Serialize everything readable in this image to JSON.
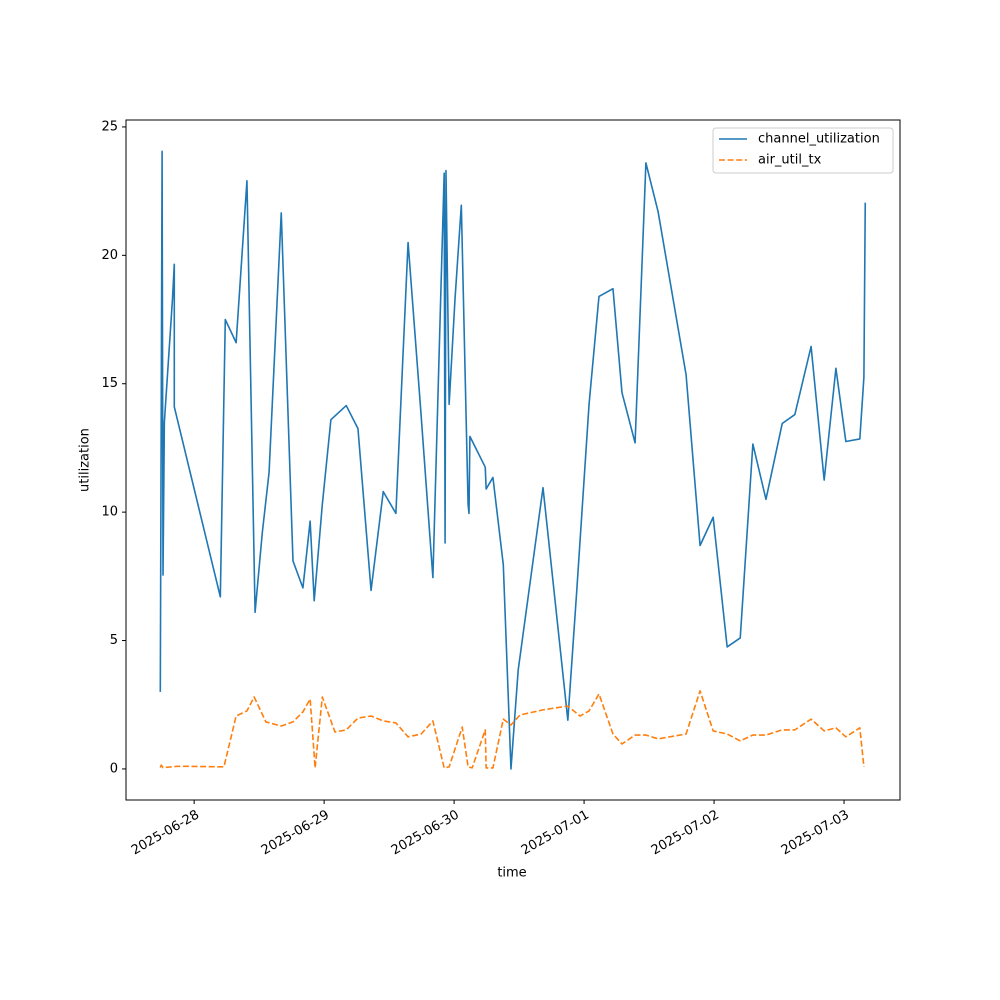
{
  "chart_data": {
    "type": "line",
    "xlabel": "time",
    "ylabel": "utilization",
    "xlim": [
      "2025-06-27 11:25",
      "2025-07-03 10:20"
    ],
    "xticks": [
      "2025-06-28",
      "2025-06-29",
      "2025-06-30",
      "2025-07-01",
      "2025-07-02",
      "2025-07-03"
    ],
    "ylim": [
      -1.21,
      25.27
    ],
    "yticks": [
      0,
      5,
      10,
      15,
      20,
      25
    ],
    "grid": false,
    "legend": "upper right",
    "series": [
      {
        "name": "channel_utilization",
        "color": "#1f77b4",
        "dash": "solid",
        "x": [
          "2025-06-27 17:45",
          "2025-06-27 18:05",
          "2025-06-27 18:15",
          "2025-06-27 18:30",
          "2025-06-27 20:00",
          "2025-06-27 20:20",
          "2025-06-27 20:20",
          "2025-06-28 04:50",
          "2025-06-28 05:45",
          "2025-06-28 07:45",
          "2025-06-28 09:45",
          "2025-06-28 11:15",
          "2025-06-28 12:35",
          "2025-06-28 13:50",
          "2025-06-28 16:05",
          "2025-06-28 18:15",
          "2025-06-28 20:05",
          "2025-06-28 21:25",
          "2025-06-28 22:10",
          "2025-06-28 23:40",
          "2025-06-29 01:15",
          "2025-06-29 04:05",
          "2025-06-29 06:15",
          "2025-06-29 08:40",
          "2025-06-29 10:55",
          "2025-06-29 13:15",
          "2025-06-29 15:30",
          "2025-06-29 17:55",
          "2025-06-29 20:05",
          "2025-06-29 22:10",
          "2025-06-29 22:20",
          "2025-06-29 22:30",
          "2025-06-29 23:05",
          "2025-06-30 00:10",
          "2025-06-30 01:20",
          "2025-06-30 02:35",
          "2025-06-30 02:45",
          "2025-06-30 02:55",
          "2025-06-30 05:45",
          "2025-06-30 05:55",
          "2025-06-30 07:10",
          "2025-06-30 09:05",
          "2025-06-30 10:30",
          "2025-06-30 11:50",
          "2025-06-30 16:25",
          "2025-06-30 21:00",
          "2025-06-30 22:40",
          "2025-07-01 00:55",
          "2025-07-01 02:45",
          "2025-07-01 05:20",
          "2025-07-01 07:00",
          "2025-07-01 09:25",
          "2025-07-01 11:25",
          "2025-07-01 13:40",
          "2025-07-01 18:50",
          "2025-07-01 21:25",
          "2025-07-01 23:50",
          "2025-07-02 02:25",
          "2025-07-02 04:50",
          "2025-07-02 07:10",
          "2025-07-02 09:35",
          "2025-07-02 12:35",
          "2025-07-02 14:55",
          "2025-07-02 17:55",
          "2025-07-02 20:20",
          "2025-07-02 22:30",
          "2025-07-03 00:20",
          "2025-07-03 02:55",
          "2025-07-03 03:40",
          "2025-07-03 03:55"
        ],
        "values": [
          3.0,
          24.05,
          7.55,
          13.5,
          18.3,
          19.65,
          14.1,
          6.7,
          17.5,
          16.6,
          22.9,
          6.1,
          9.2,
          11.55,
          21.65,
          8.1,
          7.05,
          9.65,
          6.55,
          10.3,
          13.6,
          14.15,
          13.25,
          6.95,
          10.8,
          9.95,
          20.5,
          13.75,
          7.45,
          23.2,
          8.8,
          23.3,
          14.2,
          18.3,
          21.95,
          10.3,
          9.95,
          12.95,
          11.75,
          10.9,
          11.35,
          7.95,
          0,
          3.85,
          10.95,
          1.9,
          7.0,
          14.2,
          18.4,
          18.7,
          14.65,
          12.7,
          23.6,
          21.7,
          15.35,
          8.7,
          9.8,
          4.75,
          5.1,
          12.65,
          10.5,
          13.45,
          13.8,
          16.45,
          11.25,
          15.6,
          12.75,
          12.85,
          15.25,
          22.05
        ]
      },
      {
        "name": "air_util_tx",
        "color": "#ff7f0e",
        "dash": "dashed",
        "x": [
          "2025-06-27 17:45",
          "2025-06-27 17:55",
          "2025-06-27 18:15",
          "2025-06-27 20:50",
          "2025-06-27 23:05",
          "2025-06-28 05:30",
          "2025-06-28 07:45",
          "2025-06-28 09:45",
          "2025-06-28 11:05",
          "2025-06-28 13:15",
          "2025-06-28 16:05",
          "2025-06-28 18:15",
          "2025-06-28 20:05",
          "2025-06-28 21:25",
          "2025-06-28 22:20",
          "2025-06-28 23:40",
          "2025-06-29 02:00",
          "2025-06-29 04:05",
          "2025-06-29 06:15",
          "2025-06-29 08:40",
          "2025-06-29 10:55",
          "2025-06-29 13:15",
          "2025-06-29 15:30",
          "2025-06-29 17:55",
          "2025-06-29 20:05",
          "2025-06-29 22:10",
          "2025-06-29 23:05",
          "2025-06-30 01:30",
          "2025-06-30 02:35",
          "2025-06-30 03:20",
          "2025-06-30 05:45",
          "2025-06-30 05:55",
          "2025-06-30 07:10",
          "2025-06-30 09:05",
          "2025-06-30 10:30",
          "2025-06-30 12:10",
          "2025-06-30 16:25",
          "2025-06-30 21:00",
          "2025-06-30 23:15",
          "2025-07-01 00:55",
          "2025-07-01 02:45",
          "2025-07-01 05:20",
          "2025-07-01 07:00",
          "2025-07-01 09:25",
          "2025-07-01 11:25",
          "2025-07-01 13:40",
          "2025-07-01 18:50",
          "2025-07-01 21:25",
          "2025-07-01 23:50",
          "2025-07-02 02:25",
          "2025-07-02 04:50",
          "2025-07-02 07:10",
          "2025-07-02 09:35",
          "2025-07-02 12:35",
          "2025-07-02 14:55",
          "2025-07-02 17:55",
          "2025-07-02 20:20",
          "2025-07-02 22:30",
          "2025-07-03 00:20",
          "2025-07-03 02:55",
          "2025-07-03 03:40"
        ],
        "values": [
          0.05,
          0.15,
          0.05,
          0.1,
          0.1,
          0.08,
          2.06,
          2.26,
          2.8,
          1.83,
          1.67,
          1.83,
          2.22,
          2.72,
          0.04,
          2.8,
          1.44,
          1.52,
          1.98,
          2.06,
          1.87,
          1.79,
          1.25,
          1.36,
          1.87,
          0.04,
          0.08,
          1.63,
          0.08,
          0.04,
          1.52,
          0.04,
          0.04,
          1.94,
          1.71,
          2.1,
          2.3,
          2.45,
          2.06,
          2.26,
          2.92,
          1.36,
          0.97,
          1.32,
          1.32,
          1.17,
          1.36,
          3.04,
          1.48,
          1.36,
          1.09,
          1.32,
          1.32,
          1.52,
          1.52,
          1.94,
          1.48,
          1.6,
          1.25,
          1.6,
          0.08
        ]
      }
    ]
  }
}
